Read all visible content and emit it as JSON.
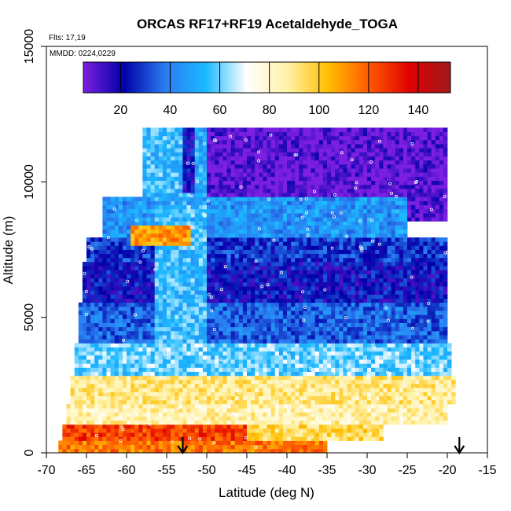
{
  "chart_data": {
    "type": "heatmap",
    "title": "ORCAS RF17+RF19 Acetaldehyde_TOGA",
    "annotations": [
      "Flts: 17,19",
      "MMDD: 0224,0229"
    ],
    "xlabel": "Latitude (deg N)",
    "ylabel": "Altitude (m)",
    "xlim": [
      -70,
      -15
    ],
    "ylim": [
      0,
      15000
    ],
    "x_ticks": [
      "-70",
      "-65",
      "-60",
      "-55",
      "-50",
      "-45",
      "-40",
      "-35",
      "-30",
      "-25",
      "-20",
      "-15"
    ],
    "y_ticks": [
      "0",
      "5000",
      "10000",
      "15000"
    ],
    "colorbar": {
      "range": [
        5,
        153
      ],
      "ticks": [
        "20",
        "40",
        "60",
        "80",
        "100",
        "120",
        "140"
      ],
      "tick_values": [
        20,
        40,
        60,
        80,
        100,
        120,
        140
      ],
      "colors": [
        "#7b1fe0",
        "#0000a8",
        "#2a7cf0",
        "#1ab8ff",
        "#ffffff",
        "#fff2a8",
        "#ffbe00",
        "#ff5a00",
        "#e00000",
        "#9e1a1a"
      ],
      "placement": "top-inside"
    },
    "arrow_markers_lat": [
      -53,
      -18.5
    ],
    "grid": false,
    "approx_layers": [
      {
        "alt": [
          0,
          400
        ],
        "lat": [
          -68.5,
          -35
        ],
        "value": 115
      },
      {
        "alt": [
          400,
          1000
        ],
        "lat": [
          -68,
          -45
        ],
        "value": 125
      },
      {
        "alt": [
          400,
          1000
        ],
        "lat": [
          -45,
          -28
        ],
        "value": 95
      },
      {
        "alt": [
          1000,
          1800
        ],
        "lat": [
          -67.5,
          -20
        ],
        "value": 85
      },
      {
        "alt": [
          1800,
          2800
        ],
        "lat": [
          -67,
          -19
        ],
        "value": 90
      },
      {
        "alt": [
          2800,
          4000
        ],
        "lat": [
          -66.5,
          -19.5
        ],
        "value": 60
      },
      {
        "alt": [
          4000,
          5500
        ],
        "lat": [
          -66,
          -20
        ],
        "value": 35
      },
      {
        "alt": [
          5500,
          7000
        ],
        "lat": [
          -65.5,
          -20
        ],
        "value": 22
      },
      {
        "alt": [
          7000,
          8000
        ],
        "lat": [
          -65,
          -20
        ],
        "value": 28
      },
      {
        "alt": [
          8000,
          9500
        ],
        "lat": [
          -63,
          -25
        ],
        "value": 45
      },
      {
        "alt": [
          9500,
          12000
        ],
        "lat": [
          -58,
          -52
        ],
        "value": 55
      },
      {
        "alt": [
          8500,
          12000
        ],
        "lat": [
          -52,
          -20
        ],
        "value": 8
      }
    ]
  }
}
